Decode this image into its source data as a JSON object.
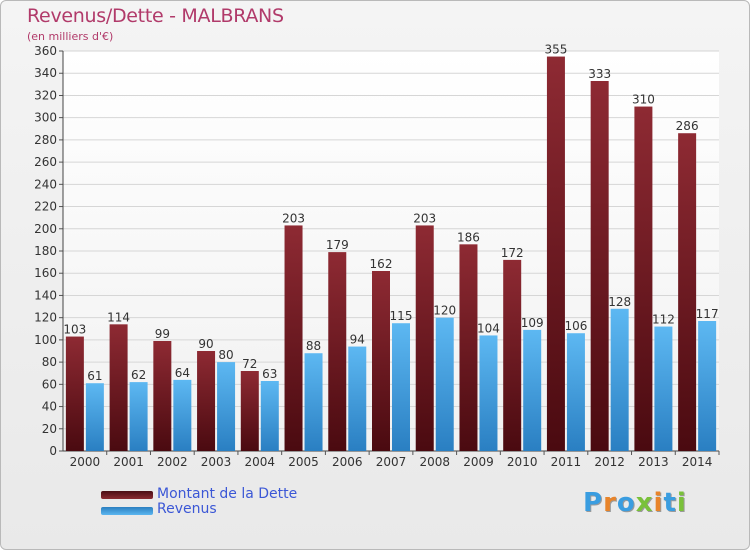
{
  "chart_data": {
    "type": "bar",
    "title": "Revenus/Dette - MALBRANS",
    "subtitle": "(en milliers d'€)",
    "categories": [
      "2000",
      "2001",
      "2002",
      "2003",
      "2004",
      "2005",
      "2006",
      "2007",
      "2008",
      "2009",
      "2010",
      "2011",
      "2012",
      "2013",
      "2014"
    ],
    "series": [
      {
        "name": "Montant de la Dette",
        "color": "#7a1e26",
        "values": [
          103,
          114,
          99,
          90,
          72,
          203,
          179,
          162,
          203,
          186,
          172,
          355,
          333,
          310,
          286
        ]
      },
      {
        "name": "Revenus",
        "color": "#3a9de0",
        "values": [
          61,
          62,
          64,
          80,
          63,
          88,
          94,
          115,
          120,
          104,
          109,
          106,
          128,
          112,
          117
        ]
      }
    ],
    "ylim": [
      0,
      360
    ],
    "yticks": [
      0,
      20,
      40,
      60,
      80,
      100,
      120,
      140,
      160,
      180,
      200,
      220,
      240,
      260,
      280,
      300,
      320,
      340,
      360
    ],
    "grid": true,
    "legend_position": "bottom-left"
  },
  "logo": {
    "text": [
      "P",
      "r",
      "o",
      "x",
      "i",
      "t",
      "i"
    ],
    "colors": [
      "#3a9de0",
      "#e8842a",
      "#3a9de0",
      "#7ac13a",
      "#e8842a",
      "#3a9de0",
      "#7ac13a"
    ]
  }
}
